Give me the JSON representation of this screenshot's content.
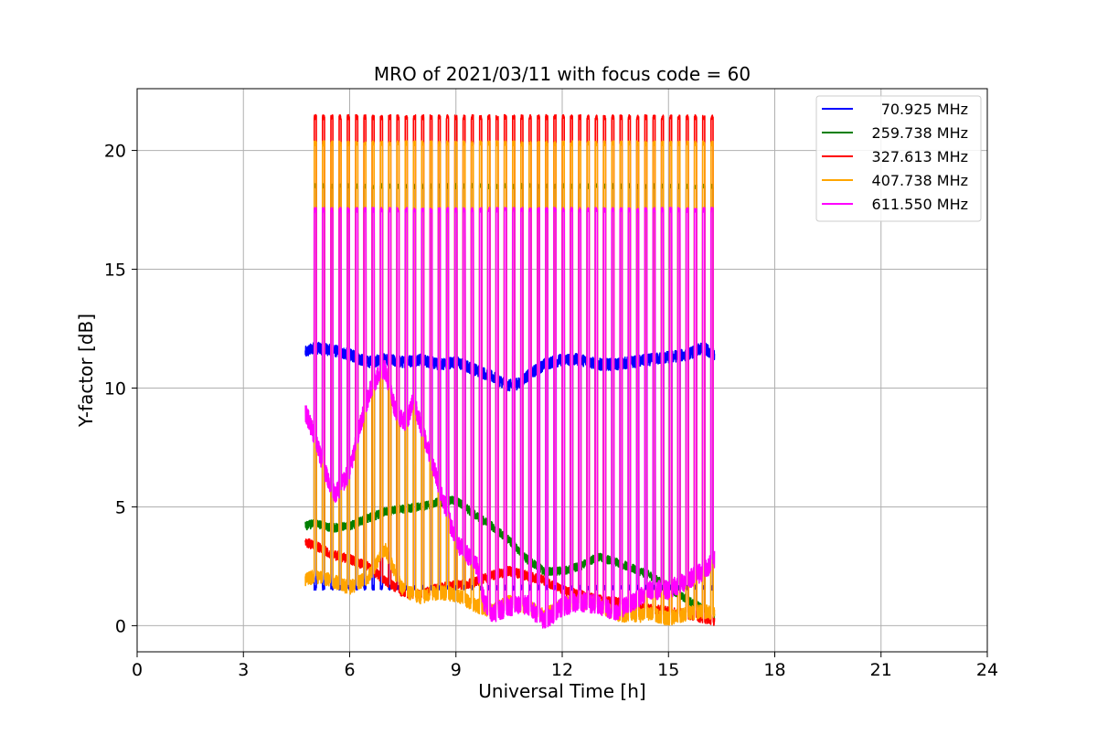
{
  "chart_data": {
    "type": "line",
    "title": "MRO of 2021/03/11 with focus code = 60",
    "xlabel": "Universal Time [h]",
    "ylabel": "Y-factor [dB]",
    "xlim": [
      0,
      24
    ],
    "ylim": [
      -1.1,
      22.6
    ],
    "xticks": [
      0,
      3,
      6,
      9,
      12,
      15,
      18,
      21,
      24
    ],
    "xtick_labels": [
      "0",
      "3",
      "6",
      "9",
      "12",
      "15",
      "18",
      "21",
      "24"
    ],
    "yticks": [
      0,
      5,
      10,
      15,
      20
    ],
    "ytick_labels": [
      "0",
      "5",
      "10",
      "15",
      "20"
    ],
    "grid": true,
    "legend_position": "top-right",
    "pulse": {
      "start": 5.0,
      "end": 16.3,
      "period": 0.2333,
      "duration": 0.06
    },
    "series": [
      {
        "name": "70.925 MHz",
        "color": "#0000ff",
        "x": [
          4.75,
          5.0,
          5.5,
          6.0,
          6.5,
          7.0,
          7.5,
          8.0,
          8.5,
          9.0,
          9.5,
          10.0,
          10.5,
          10.8,
          11.0,
          11.5,
          12.0,
          12.5,
          13.0,
          13.5,
          14.0,
          14.5,
          15.0,
          15.5,
          16.0,
          16.3
        ],
        "values": [
          11.5,
          11.7,
          11.6,
          11.4,
          11.1,
          11.2,
          11.1,
          11.2,
          11.0,
          11.1,
          10.8,
          10.5,
          10.1,
          10.2,
          10.5,
          11.0,
          11.2,
          11.2,
          11.0,
          11.0,
          11.1,
          11.2,
          11.3,
          11.4,
          11.7,
          11.4
        ],
        "pulse_value": 1.6,
        "noise": 0.25
      },
      {
        "name": "259.738 MHz",
        "color": "#007f00",
        "x": [
          4.75,
          5.0,
          5.5,
          6.0,
          6.5,
          7.0,
          7.5,
          8.0,
          8.5,
          9.0,
          9.5,
          10.0,
          10.5,
          11.0,
          11.5,
          12.0,
          12.5,
          13.0,
          13.5,
          14.0,
          14.5,
          15.0,
          15.5,
          16.0,
          16.3
        ],
        "values": [
          4.2,
          4.3,
          4.1,
          4.2,
          4.5,
          4.8,
          4.9,
          5.0,
          5.2,
          5.3,
          4.7,
          4.2,
          3.6,
          2.8,
          2.3,
          2.3,
          2.5,
          2.9,
          2.7,
          2.4,
          2.1,
          1.6,
          1.1,
          0.7,
          0.3
        ],
        "pulse_value": 18.5,
        "noise": 0.18
      },
      {
        "name": "327.613 MHz",
        "color": "#ff0000",
        "x": [
          4.75,
          5.0,
          5.5,
          6.0,
          6.5,
          7.0,
          7.5,
          8.0,
          8.5,
          9.0,
          9.5,
          10.0,
          10.5,
          11.0,
          11.5,
          12.0,
          12.5,
          13.0,
          13.5,
          14.0,
          14.5,
          15.0,
          15.5,
          16.0,
          16.3
        ],
        "values": [
          3.5,
          3.4,
          3.0,
          2.8,
          2.5,
          1.9,
          1.4,
          1.3,
          1.6,
          1.7,
          1.8,
          2.1,
          2.3,
          2.1,
          1.9,
          1.5,
          1.3,
          1.1,
          1.0,
          0.8,
          0.7,
          0.6,
          0.5,
          0.3,
          0.2
        ],
        "pulse_value": 21.4,
        "noise": 0.2
      },
      {
        "name": "407.738 MHz",
        "color": "#ffa500",
        "x": [
          4.75,
          5.0,
          5.5,
          6.0,
          6.5,
          7.0,
          7.5,
          8.0,
          8.5,
          9.0,
          9.5,
          10.0,
          10.5,
          11.0,
          11.5,
          12.0,
          12.5,
          13.0,
          13.5,
          14.0,
          14.5,
          15.0,
          15.5,
          16.0,
          16.3
        ],
        "values": [
          1.9,
          2.1,
          1.9,
          1.6,
          2.0,
          3.2,
          1.5,
          1.2,
          1.4,
          1.3,
          0.9,
          0.6,
          1.0,
          0.8,
          0.4,
          0.9,
          1.0,
          0.9,
          0.5,
          0.4,
          0.5,
          0.3,
          0.5,
          0.6,
          0.5
        ],
        "pulse_value": 20.3,
        "noise": 0.3
      },
      {
        "name": "611.550 MHz",
        "color": "#ff00ff",
        "x": [
          4.75,
          5.0,
          5.3,
          5.6,
          6.0,
          6.3,
          6.6,
          6.8,
          7.0,
          7.3,
          7.6,
          7.8,
          8.1,
          8.4,
          8.7,
          9.0,
          9.3,
          9.6,
          9.8,
          10.0,
          10.5,
          11.0,
          11.5,
          12.0,
          12.5,
          13.0,
          13.5,
          14.0,
          14.5,
          15.0,
          15.5,
          16.0,
          16.3
        ],
        "values": [
          9.0,
          8.0,
          6.5,
          5.5,
          6.5,
          8.5,
          10.0,
          10.5,
          10.8,
          9.0,
          8.5,
          9.5,
          8.0,
          6.5,
          5.0,
          3.5,
          3.0,
          2.5,
          1.0,
          0.5,
          0.8,
          0.9,
          0.2,
          0.8,
          1.0,
          0.9,
          0.6,
          1.0,
          1.5,
          1.5,
          1.9,
          2.3,
          2.8
        ],
        "pulse_value": 17.5,
        "noise": 0.4
      }
    ]
  }
}
